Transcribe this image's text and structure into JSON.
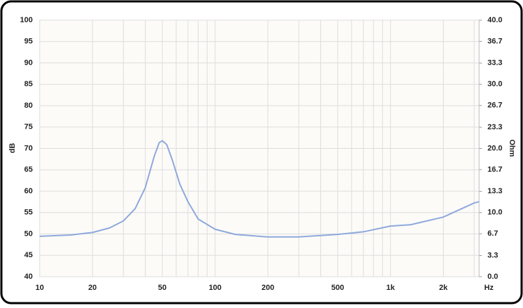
{
  "chart_data": {
    "type": "line",
    "x_label": "Hz",
    "y_label": "dB",
    "y2_label": "Ohm",
    "xlog": true,
    "grid": true,
    "xlim": [
      10,
      3200
    ],
    "xticks": [
      10,
      20,
      50,
      100,
      200,
      500,
      {
        "value": 1000,
        "label": "1k"
      },
      {
        "value": 2000,
        "label": "2k"
      }
    ],
    "xminor": [
      30,
      40,
      60,
      70,
      80,
      90,
      300,
      400,
      600,
      700,
      800,
      900,
      3000
    ],
    "ylim": [
      40,
      100
    ],
    "yticks": [
      40,
      45,
      50,
      55,
      60,
      65,
      70,
      75,
      80,
      85,
      90,
      95,
      100
    ],
    "y2lim": [
      0,
      40
    ],
    "y2ticks": [
      {
        "value": 0,
        "label": "0.0"
      },
      3.3,
      6.7,
      {
        "value": 10,
        "label": "10.0"
      },
      13.3,
      16.7,
      {
        "value": 20,
        "label": "20.0"
      },
      23.3,
      26.7,
      {
        "value": 30,
        "label": "30.0"
      },
      33.3,
      36.7,
      {
        "value": 40,
        "label": "40.0"
      }
    ],
    "x": [
      10,
      15,
      20,
      25,
      30,
      35,
      40,
      45,
      48,
      50,
      53,
      57,
      63,
      70,
      80,
      100,
      130,
      200,
      300,
      500,
      700,
      1000,
      1300,
      2000,
      3000,
      3200
    ],
    "series": [
      {
        "color": "#8fa8dc",
        "axis": "y2",
        "values": [
          6.3,
          6.5,
          6.9,
          7.6,
          8.7,
          10.6,
          13.9,
          18.8,
          20.9,
          21.2,
          20.6,
          18.2,
          14.4,
          11.7,
          9.0,
          7.4,
          6.6,
          6.2,
          6.2,
          6.6,
          7.0,
          7.9,
          8.1,
          9.3,
          11.5,
          11.7
        ]
      }
    ]
  }
}
